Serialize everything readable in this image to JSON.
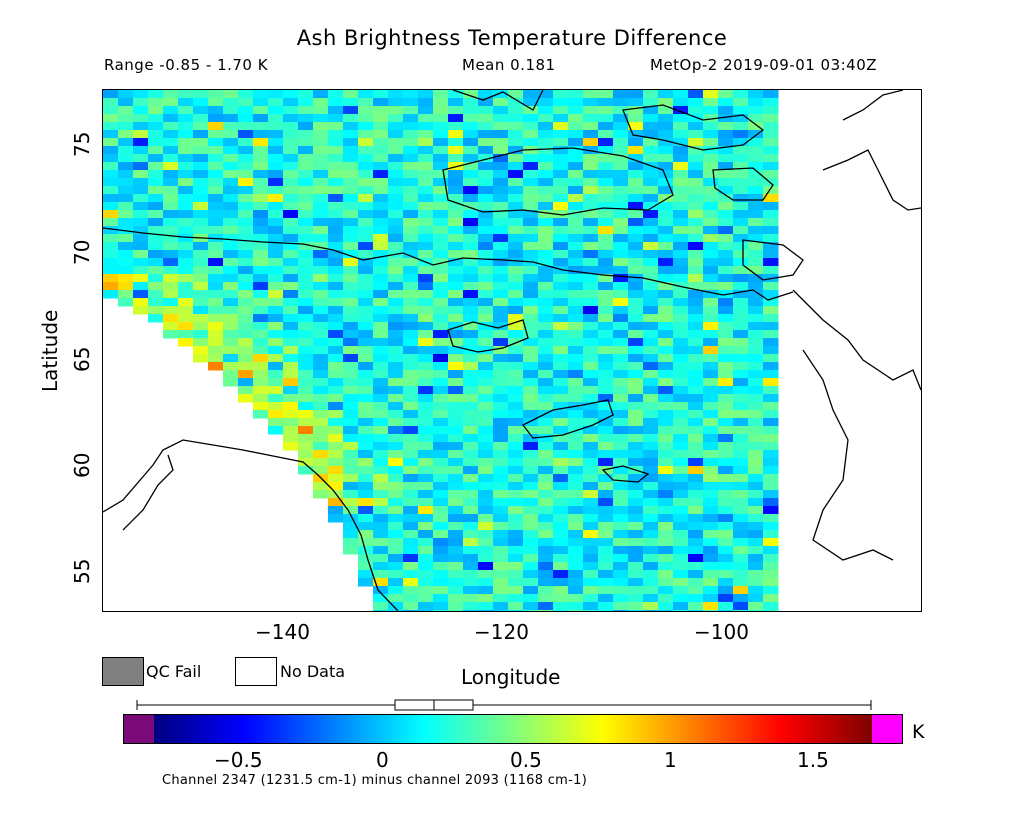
{
  "header": {
    "title": "Ash Brightness Temperature Difference",
    "range_text": "Range -0.85 - 1.70 K",
    "mean_text": "Mean 0.181",
    "source_text": "MetOp-2 2019-09-01 03:40Z"
  },
  "axes": {
    "ylabel": "Latitude",
    "xlabel": "Longitude",
    "yticks": [
      "75",
      "70",
      "65",
      "60",
      "55"
    ],
    "xticks": [
      "−140",
      "−120",
      "−100"
    ]
  },
  "legend": {
    "qc_fail": {
      "label": "QC Fail",
      "color": "#808080"
    },
    "no_data": {
      "label": "No Data",
      "color": "#ffffff"
    }
  },
  "colorbar": {
    "unit": "K",
    "ticks": [
      "−0.5",
      "0",
      "0.5",
      "1",
      "1.5"
    ],
    "under_color": "#7a0a78",
    "over_color": "#ff00ff",
    "colors": [
      "#00007f",
      "#0000ff",
      "#007fff",
      "#00ffff",
      "#7fff7f",
      "#ffff00",
      "#ff7f00",
      "#ff0000",
      "#7f0000"
    ],
    "footnote": "Channel 2347 (1231.5 cm-1) minus channel 2093 (1168 cm-1)"
  },
  "chart_data": {
    "type": "heatmap",
    "title": "Ash Brightness Temperature Difference",
    "xlabel": "Longitude",
    "ylabel": "Latitude",
    "xlim": [
      -155,
      -83
    ],
    "ylim": [
      53,
      77.5
    ],
    "color_range": [
      -0.85,
      1.7
    ],
    "mean": 0.181,
    "units": "K",
    "swath_east_edge_lon": -95,
    "typical_value": 0.15,
    "elevated_region": "western swath edge near 60-68N, 140-150W, values 0.8-1.7 K"
  }
}
